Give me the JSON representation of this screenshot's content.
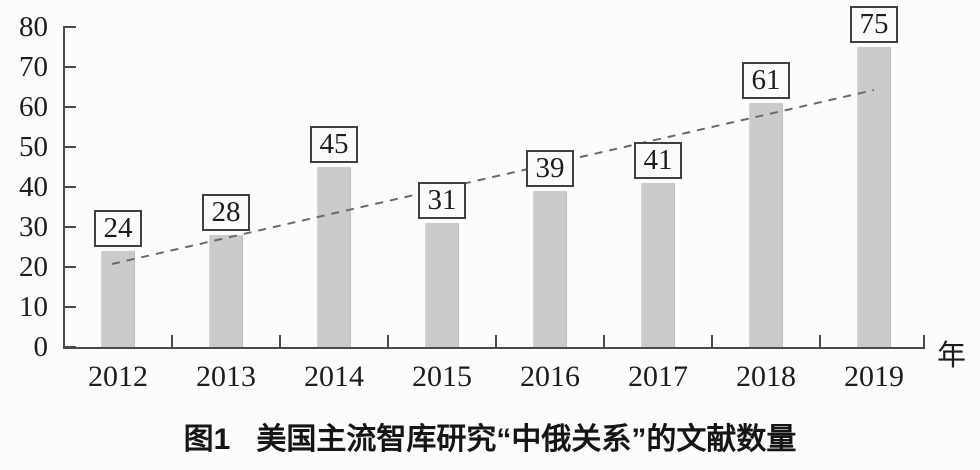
{
  "chart_data": {
    "type": "bar",
    "figure_label": "图1",
    "title_text": "美国主流智库研究“中俄关系”的文献数量",
    "title": "图1 美国主流智库研究“中俄关系”的文献数量",
    "categories": [
      "2012",
      "2013",
      "2014",
      "2015",
      "2016",
      "2017",
      "2018",
      "2019"
    ],
    "values": [
      24,
      28,
      45,
      31,
      39,
      41,
      61,
      75
    ],
    "value_labels": [
      "24",
      "28",
      "45",
      "31",
      "39",
      "41",
      "61",
      "75"
    ],
    "xlabel": "年",
    "ylabel": "",
    "ylim": [
      0,
      80
    ],
    "yticks": [
      0,
      10,
      20,
      30,
      40,
      50,
      60,
      70,
      80
    ],
    "grid": false,
    "legend": "none",
    "bar_color": "#cbcbcb",
    "axis_color": "#4a4a4a",
    "trendline": {
      "style": "dashed",
      "color": "#6a6a6a",
      "from": {
        "category": "2012",
        "value": 21
      },
      "to": {
        "category": "2019",
        "value": 64
      }
    }
  }
}
